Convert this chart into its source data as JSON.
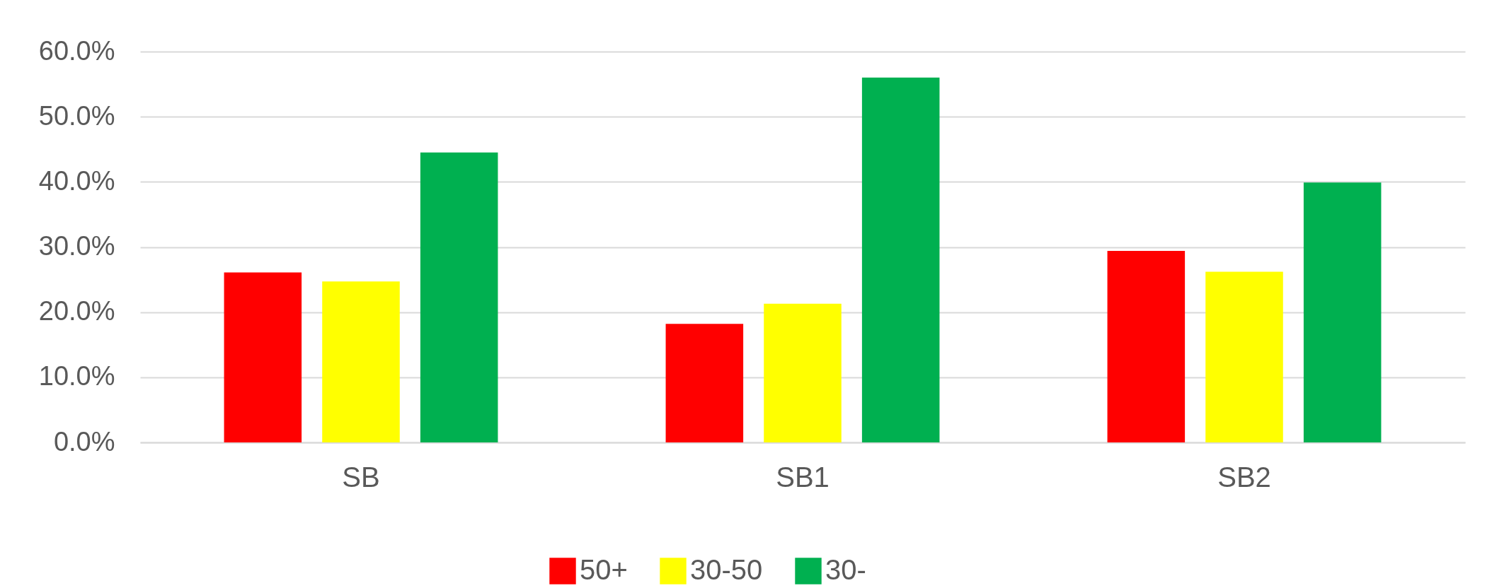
{
  "chart_data": {
    "type": "bar",
    "categories": [
      "SB",
      "SB1",
      "SB2"
    ],
    "series": [
      {
        "name": "50+",
        "color": "#ff0000",
        "values": [
          26.1,
          18.2,
          29.4
        ]
      },
      {
        "name": "30-50",
        "color": "#ffff00",
        "values": [
          24.7,
          21.3,
          26.2
        ]
      },
      {
        "name": "30-",
        "color": "#00b050",
        "values": [
          44.5,
          56.0,
          39.9
        ]
      }
    ],
    "ylim": [
      0,
      60
    ],
    "yticks": [
      {
        "value": 0,
        "label": "0.0%"
      },
      {
        "value": 10,
        "label": "10.0%"
      },
      {
        "value": 20,
        "label": "20.0%"
      },
      {
        "value": 30,
        "label": "30.0%"
      },
      {
        "value": 40,
        "label": "40.0%"
      },
      {
        "value": 50,
        "label": "50.0%"
      },
      {
        "value": 60,
        "label": "60.0%"
      }
    ],
    "grid": "y",
    "legend": "bottom"
  }
}
